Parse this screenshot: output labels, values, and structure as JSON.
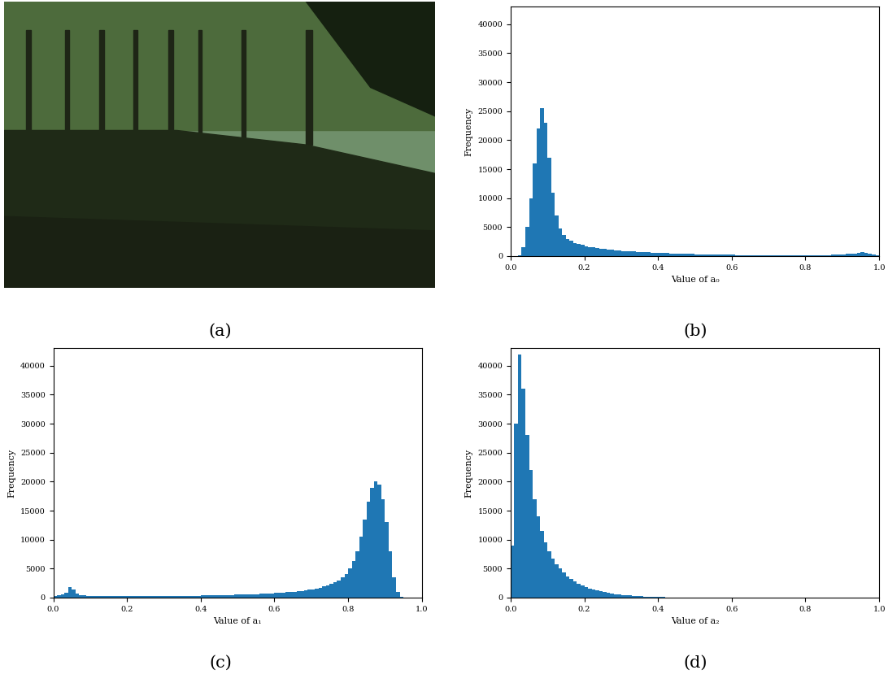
{
  "image": {
    "caption": "(a)"
  },
  "chart_data": [
    {
      "type": "histogram",
      "caption": "(b)",
      "x_label": "Value of a₀",
      "y_label": "Frequency",
      "color": "#1f77b4",
      "bins": [
        0,
        0.01,
        0.02,
        0.03,
        0.04,
        0.05,
        0.06,
        0.07,
        0.08,
        0.09,
        0.1,
        0.11,
        0.12,
        0.13,
        0.14,
        0.15,
        0.16,
        0.17,
        0.18,
        0.19,
        0.2,
        0.21,
        0.22,
        0.23,
        0.24,
        0.25,
        0.26,
        0.27,
        0.28,
        0.29,
        0.3,
        0.31,
        0.32,
        0.33,
        0.34,
        0.35,
        0.36,
        0.37,
        0.38,
        0.39,
        0.4,
        0.41,
        0.42,
        0.43,
        0.44,
        0.45,
        0.46,
        0.47,
        0.48,
        0.49,
        0.5,
        0.51,
        0.52,
        0.53,
        0.54,
        0.55,
        0.56,
        0.57,
        0.58,
        0.59,
        0.6,
        0.61,
        0.62,
        0.63,
        0.64,
        0.65,
        0.66,
        0.67,
        0.68,
        0.69,
        0.7,
        0.71,
        0.72,
        0.73,
        0.74,
        0.75,
        0.76,
        0.77,
        0.78,
        0.79,
        0.8,
        0.81,
        0.82,
        0.83,
        0.84,
        0.85,
        0.86,
        0.87,
        0.88,
        0.89,
        0.9,
        0.91,
        0.92,
        0.93,
        0.94,
        0.95,
        0.96,
        0.97,
        0.98,
        0.99,
        1.0
      ],
      "counts": [
        0,
        0,
        200,
        1500,
        5000,
        10000,
        16000,
        22000,
        25500,
        23000,
        17000,
        11000,
        7000,
        4800,
        3600,
        3000,
        2600,
        2300,
        2100,
        1900,
        1750,
        1600,
        1500,
        1400,
        1300,
        1220,
        1150,
        1080,
        1020,
        960,
        900,
        860,
        820,
        780,
        740,
        700,
        670,
        640,
        610,
        580,
        550,
        530,
        510,
        490,
        470,
        450,
        430,
        410,
        390,
        370,
        350,
        335,
        320,
        305,
        290,
        275,
        260,
        250,
        240,
        230,
        220,
        210,
        200,
        190,
        180,
        170,
        160,
        150,
        145,
        140,
        135,
        130,
        125,
        120,
        115,
        110,
        105,
        100,
        100,
        100,
        100,
        105,
        110,
        120,
        130,
        150,
        180,
        220,
        260,
        300,
        330,
        360,
        400,
        450,
        550,
        650,
        600,
        450,
        300,
        150
      ],
      "xlim": [
        0,
        1
      ],
      "ylim": [
        0,
        43000
      ],
      "xticks": [
        {
          "value": 0,
          "label": "0.0"
        },
        {
          "value": 0.2,
          "label": "0.2"
        },
        {
          "value": 0.4,
          "label": "0.4"
        },
        {
          "value": 0.6,
          "label": "0.6"
        },
        {
          "value": 0.8,
          "label": "0.8"
        },
        {
          "value": 1,
          "label": "1.0"
        }
      ],
      "yticks": [
        0,
        5000,
        10000,
        15000,
        20000,
        25000,
        30000,
        35000,
        40000
      ]
    },
    {
      "type": "histogram",
      "caption": "(c)",
      "x_label": "Value of a₁",
      "y_label": "Frequency",
      "color": "#1f77b4",
      "bins": [
        0,
        0.01,
        0.02,
        0.03,
        0.04,
        0.05,
        0.06,
        0.07,
        0.08,
        0.09,
        0.1,
        0.11,
        0.12,
        0.13,
        0.14,
        0.15,
        0.16,
        0.17,
        0.18,
        0.19,
        0.2,
        0.21,
        0.22,
        0.23,
        0.24,
        0.25,
        0.26,
        0.27,
        0.28,
        0.29,
        0.3,
        0.31,
        0.32,
        0.33,
        0.34,
        0.35,
        0.36,
        0.37,
        0.38,
        0.39,
        0.4,
        0.41,
        0.42,
        0.43,
        0.44,
        0.45,
        0.46,
        0.47,
        0.48,
        0.49,
        0.5,
        0.51,
        0.52,
        0.53,
        0.54,
        0.55,
        0.56,
        0.57,
        0.58,
        0.59,
        0.6,
        0.61,
        0.62,
        0.63,
        0.64,
        0.65,
        0.66,
        0.67,
        0.68,
        0.69,
        0.7,
        0.71,
        0.72,
        0.73,
        0.74,
        0.75,
        0.76,
        0.77,
        0.78,
        0.79,
        0.8,
        0.81,
        0.82,
        0.83,
        0.84,
        0.85,
        0.86,
        0.87,
        0.88,
        0.89,
        0.9,
        0.91,
        0.92,
        0.93,
        0.94,
        0.95,
        0.96,
        0.97,
        0.98,
        0.99,
        1.0
      ],
      "counts": [
        300,
        400,
        500,
        900,
        1800,
        1400,
        700,
        450,
        380,
        350,
        330,
        320,
        310,
        300,
        300,
        290,
        290,
        280,
        280,
        280,
        280,
        280,
        280,
        280,
        280,
        280,
        280,
        290,
        290,
        290,
        300,
        300,
        300,
        310,
        310,
        320,
        320,
        330,
        340,
        350,
        360,
        370,
        380,
        390,
        400,
        420,
        440,
        460,
        480,
        500,
        520,
        540,
        560,
        580,
        600,
        630,
        660,
        690,
        720,
        760,
        800,
        840,
        880,
        930,
        980,
        1040,
        1100,
        1170,
        1250,
        1340,
        1450,
        1580,
        1730,
        1900,
        2100,
        2350,
        2650,
        3000,
        3500,
        4100,
        5000,
        6300,
        8000,
        10500,
        13500,
        16500,
        19000,
        20000,
        19500,
        17000,
        13000,
        8000,
        3500,
        1000,
        200,
        0,
        0,
        0,
        0,
        0
      ],
      "xlim": [
        0,
        1
      ],
      "ylim": [
        0,
        43000
      ],
      "xticks": [
        {
          "value": 0,
          "label": "0.0"
        },
        {
          "value": 0.2,
          "label": "0.2"
        },
        {
          "value": 0.4,
          "label": "0.4"
        },
        {
          "value": 0.6,
          "label": "0.6"
        },
        {
          "value": 0.8,
          "label": "0.8"
        },
        {
          "value": 1,
          "label": "1.0"
        }
      ],
      "yticks": [
        0,
        5000,
        10000,
        15000,
        20000,
        25000,
        30000,
        35000,
        40000
      ]
    },
    {
      "type": "histogram",
      "caption": "(d)",
      "x_label": "Value of a₂",
      "y_label": "Frequency",
      "color": "#1f77b4",
      "bins": [
        0,
        0.01,
        0.02,
        0.03,
        0.04,
        0.05,
        0.06,
        0.07,
        0.08,
        0.09,
        0.1,
        0.11,
        0.12,
        0.13,
        0.14,
        0.15,
        0.16,
        0.17,
        0.18,
        0.19,
        0.2,
        0.21,
        0.22,
        0.23,
        0.24,
        0.25,
        0.26,
        0.27,
        0.28,
        0.29,
        0.3,
        0.31,
        0.32,
        0.33,
        0.34,
        0.35,
        0.36,
        0.37,
        0.38,
        0.39,
        0.4,
        0.41,
        0.42,
        0.43,
        0.44,
        0.45,
        0.46,
        0.47,
        0.48,
        0.49,
        0.5,
        0.51,
        0.52,
        0.53,
        0.54,
        0.55,
        0.56,
        0.57,
        0.58,
        0.59,
        0.6,
        0.61,
        0.62,
        0.63,
        0.64,
        0.65,
        0.66,
        0.67,
        0.68,
        0.69,
        0.7,
        0.71,
        0.72,
        0.73,
        0.74,
        0.75,
        0.76,
        0.77,
        0.78,
        0.79,
        0.8,
        0.81,
        0.82,
        0.83,
        0.84,
        0.85,
        0.86,
        0.87,
        0.88,
        0.89,
        0.9,
        0.91,
        0.92,
        0.93,
        0.94,
        0.95,
        0.96,
        0.97,
        0.98,
        0.99,
        1.0
      ],
      "counts": [
        9000,
        30000,
        42000,
        36000,
        28000,
        22000,
        17000,
        14000,
        11500,
        9500,
        8000,
        6800,
        5800,
        5000,
        4300,
        3700,
        3200,
        2800,
        2400,
        2100,
        1850,
        1600,
        1400,
        1250,
        1100,
        950,
        830,
        720,
        620,
        540,
        470,
        410,
        360,
        310,
        270,
        230,
        200,
        170,
        140,
        120,
        100,
        80,
        60,
        40,
        0,
        0,
        0,
        0,
        0,
        0,
        0,
        0,
        0,
        0,
        0,
        0,
        0,
        0,
        0,
        0,
        0,
        0,
        0,
        0,
        0,
        0,
        0,
        0,
        0,
        0,
        0,
        0,
        0,
        0,
        0,
        0,
        0,
        0,
        0,
        0,
        0,
        0,
        0,
        0,
        0,
        0,
        0,
        0,
        0,
        0,
        0,
        0,
        0,
        0,
        0,
        0,
        0,
        0,
        0,
        0
      ],
      "xlim": [
        0,
        1
      ],
      "ylim": [
        0,
        43000
      ],
      "xticks": [
        {
          "value": 0,
          "label": "0.0"
        },
        {
          "value": 0.2,
          "label": "0.2"
        },
        {
          "value": 0.4,
          "label": "0.4"
        },
        {
          "value": 0.6,
          "label": "0.6"
        },
        {
          "value": 0.8,
          "label": "0.8"
        },
        {
          "value": 1,
          "label": "1.0"
        }
      ],
      "yticks": [
        0,
        5000,
        10000,
        15000,
        20000,
        25000,
        30000,
        35000,
        40000
      ]
    }
  ]
}
